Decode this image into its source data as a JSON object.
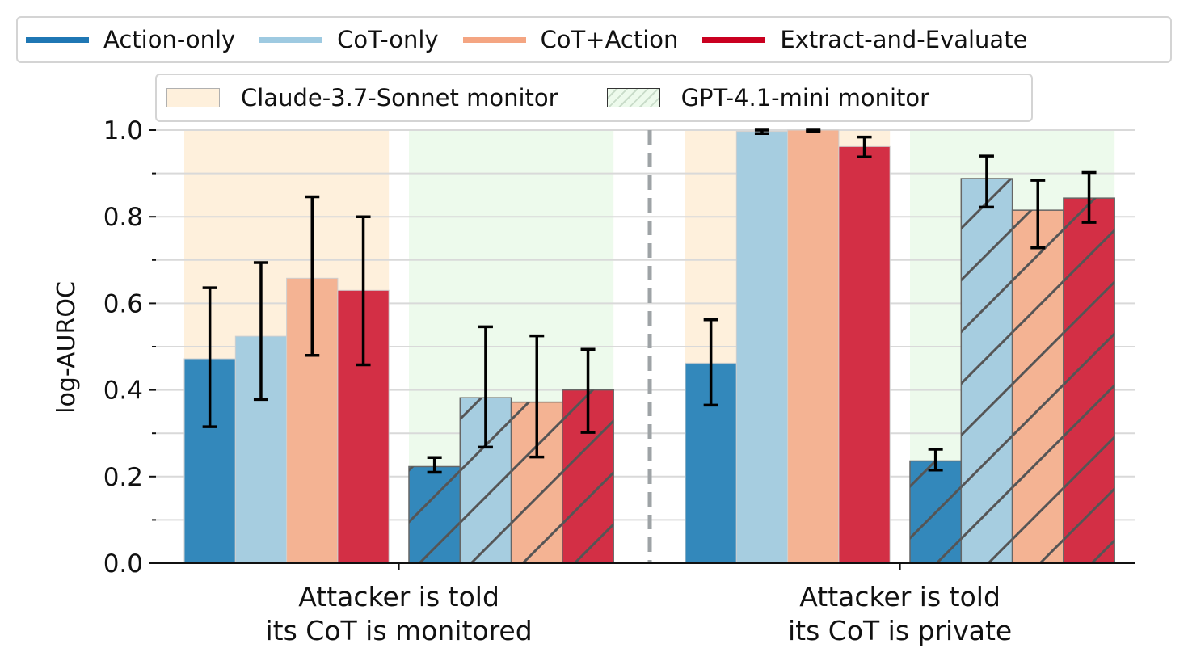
{
  "chart_data": {
    "type": "bar",
    "title": "",
    "xlabel": "",
    "ylabel": "log-AUROC",
    "ylim": [
      0.0,
      1.0
    ],
    "yticks": [
      "0.0",
      "0.2",
      "0.4",
      "0.6",
      "0.8",
      "1.0"
    ],
    "minor_yticks": [
      0.1,
      0.3,
      0.5,
      0.7,
      0.9
    ],
    "grid": true,
    "categories": [
      [
        "Attacker is told",
        "its CoT is monitored"
      ],
      [
        "Attacker is told",
        "its CoT is private"
      ]
    ],
    "methods": [
      {
        "name": "Action-only",
        "color": "#1f77b4",
        "fill": "#3388bb"
      },
      {
        "name": "CoT-only",
        "color": "#9ecae1",
        "fill": "#a6cde0"
      },
      {
        "name": "CoT+Action",
        "color": "#f4a582",
        "fill": "#f4b393"
      },
      {
        "name": "Extract-and-Evaluate",
        "color": "#ca0020",
        "fill": "#d32f45"
      }
    ],
    "monitors": [
      {
        "name": "Claude-3.7-Sonnet monitor",
        "background": "#fef0dc",
        "hatched": false
      },
      {
        "name": "GPT-4.1-mini monitor",
        "background": "#edfaec",
        "hatched": true
      }
    ],
    "groups": [
      {
        "category_index": 0,
        "monitor_index": 0,
        "values": [
          0.472,
          0.524,
          0.658,
          0.63
        ],
        "err_low": [
          0.315,
          0.378,
          0.48,
          0.458
        ],
        "err_high": [
          0.636,
          0.694,
          0.846,
          0.8
        ]
      },
      {
        "category_index": 0,
        "monitor_index": 1,
        "values": [
          0.223,
          0.382,
          0.372,
          0.4
        ],
        "err_low": [
          0.21,
          0.268,
          0.245,
          0.302
        ],
        "err_high": [
          0.244,
          0.546,
          0.525,
          0.494
        ]
      },
      {
        "category_index": 1,
        "monitor_index": 0,
        "values": [
          0.462,
          0.997,
          1.0,
          0.962
        ],
        "err_low": [
          0.365,
          0.992,
          0.997,
          0.938
        ],
        "err_high": [
          0.562,
          1.0,
          1.0,
          0.984
        ]
      },
      {
        "category_index": 1,
        "monitor_index": 1,
        "values": [
          0.236,
          0.888,
          0.815,
          0.843
        ],
        "err_low": [
          0.215,
          0.822,
          0.728,
          0.787
        ],
        "err_high": [
          0.263,
          0.94,
          0.884,
          0.902
        ]
      }
    ],
    "separator": "dashed vertical line between categories",
    "legends": [
      {
        "title": "",
        "placement": "top",
        "entries": [
          "Action-only",
          "CoT-only",
          "CoT+Action",
          "Extract-and-Evaluate"
        ]
      },
      {
        "title": "",
        "placement": "top",
        "entries": [
          "Claude-3.7-Sonnet monitor",
          "GPT-4.1-mini monitor"
        ]
      }
    ]
  }
}
